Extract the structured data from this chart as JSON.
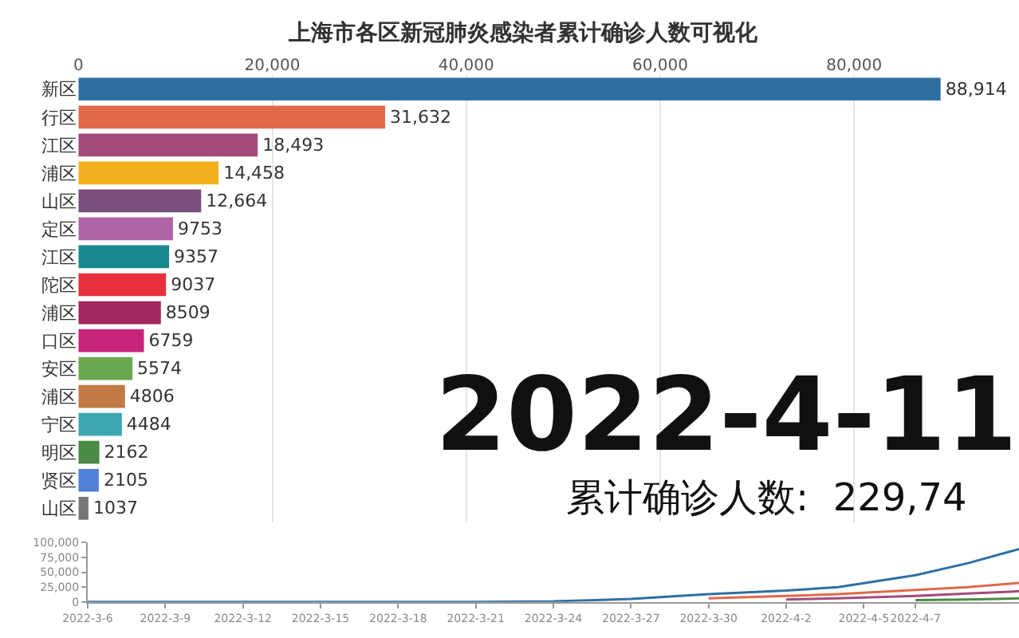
{
  "chart_data": [
    {
      "type": "bar",
      "orientation": "horizontal",
      "title": "上海市各区新冠肺炎感染者累计确诊人数可视化",
      "categories": [
        "新区",
        "行区",
        "江区",
        "浦区",
        "山区",
        "定区",
        "江区",
        "陀区",
        "浦区",
        "口区",
        "安区",
        "浦区",
        "宁区",
        "明区",
        "贤区",
        "山区"
      ],
      "values": [
        88914,
        31632,
        18493,
        14458,
        12664,
        9753,
        9357,
        9037,
        8509,
        6759,
        5574,
        4806,
        4484,
        2162,
        2105,
        1037
      ],
      "value_labels": [
        "88,914",
        "31,632",
        "18,493",
        "14,458",
        "12,664",
        "9753",
        "9357",
        "9037",
        "8509",
        "6759",
        "5574",
        "4806",
        "4484",
        "2162",
        "2105",
        "1037"
      ],
      "colors": [
        "#2e6fa3",
        "#e0694a",
        "#a34a7a",
        "#f2b01e",
        "#7a4f7e",
        "#b064a8",
        "#17898e",
        "#e8303c",
        "#a3285e",
        "#c7237a",
        "#6aa84f",
        "#c17a45",
        "#3da6b0",
        "#4b8b45",
        "#4f7fd6",
        "#777777"
      ],
      "xlim": [
        0,
        97000
      ],
      "xticks": [
        0,
        {
          "value": 20000,
          "label": "20,000"
        },
        {
          "value": 40000,
          "label": "40,000"
        },
        {
          "value": 60000,
          "label": "60,000"
        },
        {
          "value": 80000,
          "label": "80,000"
        }
      ],
      "grid": "x",
      "annotations": [
        "2022-4-11",
        "累计确诊人数:  229,74"
      ]
    },
    {
      "type": "line",
      "x": [
        "2022-03-06",
        "2022-03-21",
        "2022-03-24",
        "2022-03-27",
        "2022-03-30",
        "2022-04-02",
        "2022-04-04",
        "2022-04-07",
        "2022-04-09",
        "2022-04-11"
      ],
      "series": [
        {
          "color": "#2e6fa3",
          "values": [
            0,
            0,
            1000,
            5000,
            13000,
            19000,
            25000,
            45000,
            65000,
            89000
          ]
        },
        {
          "color": "#e0694a",
          "values": [
            null,
            null,
            null,
            null,
            6000,
            10000,
            13000,
            20000,
            25000,
            32000
          ]
        },
        {
          "color": "#a34a7a",
          "values": [
            null,
            null,
            null,
            null,
            null,
            4000,
            6000,
            10000,
            14000,
            18000
          ]
        },
        {
          "color": "#4b8b45",
          "values": [
            null,
            null,
            null,
            null,
            null,
            null,
            null,
            3000,
            4000,
            6000
          ]
        }
      ],
      "xlim": [
        "2022-03-06",
        "2022-04-11"
      ],
      "xticks": [
        {
          "value": "2022-03-06",
          "label": "2022-3-6"
        },
        {
          "value": "2022-03-09",
          "label": "2022-3-9"
        },
        {
          "value": "2022-03-12",
          "label": "2022-3-12"
        },
        {
          "value": "2022-03-15",
          "label": "2022-3-15"
        },
        {
          "value": "2022-03-18",
          "label": "2022-3-18"
        },
        {
          "value": "2022-03-21",
          "label": "2022-3-21"
        },
        {
          "value": "2022-03-24",
          "label": "2022-3-24"
        },
        {
          "value": "2022-03-27",
          "label": "2022-3-27"
        },
        {
          "value": "2022-03-30",
          "label": "2022-3-30"
        },
        {
          "value": "2022-04-02",
          "label": "2022-4-2"
        },
        {
          "value": "2022-04-05",
          "label": "2022-4-5"
        },
        {
          "value": "2022-04-07",
          "label": "2022-4-7"
        }
      ],
      "ylim": [
        0,
        100000
      ],
      "yticks": [
        0,
        {
          "value": 25000,
          "label": "25,000"
        },
        {
          "value": 50000,
          "label": "50,000"
        },
        {
          "value": 75000,
          "label": "75,000"
        },
        {
          "value": 100000,
          "label": "100,000"
        }
      ],
      "grid": false,
      "marker": "none",
      "line_style": "solid"
    }
  ]
}
